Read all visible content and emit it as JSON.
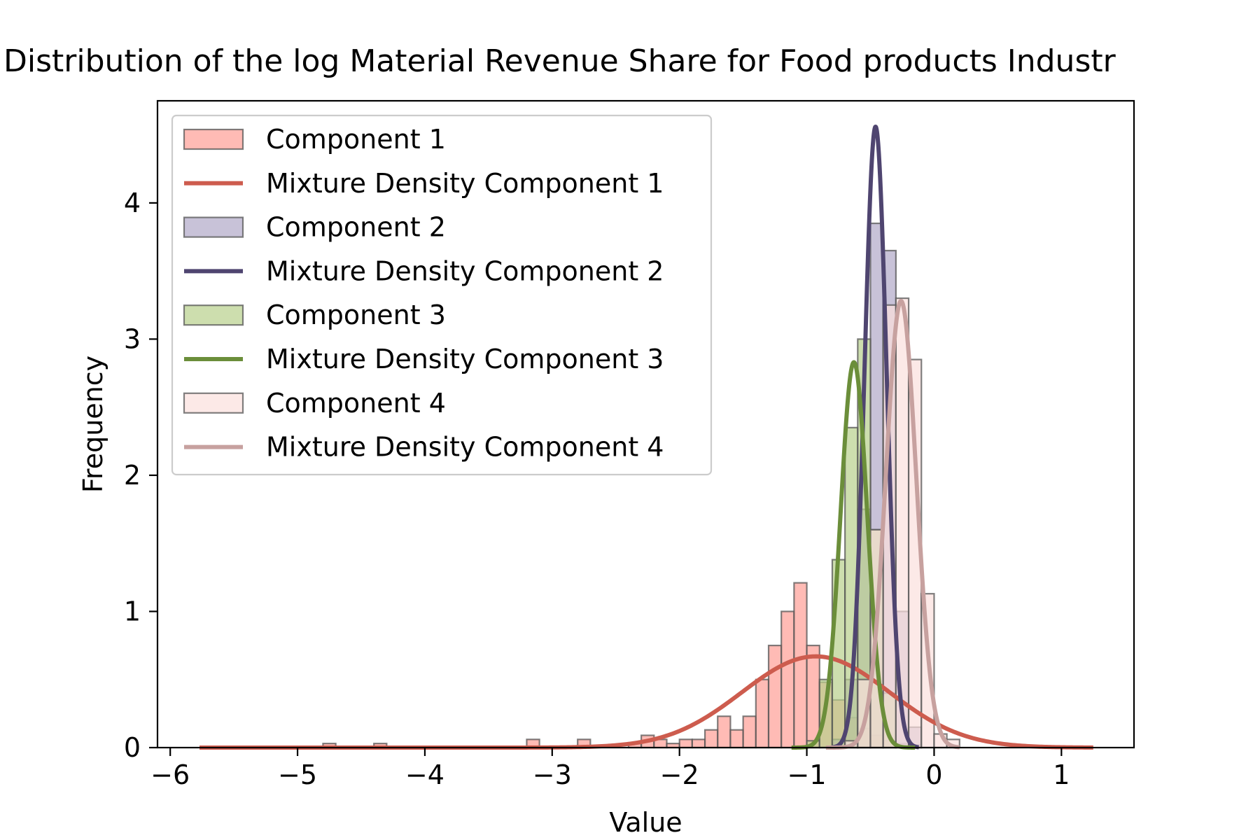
{
  "chart_data": {
    "type": "histogram",
    "title": "Distribution of the log Material Revenue Share for Food products Industr",
    "xlabel": "Value",
    "ylabel": "Frequency",
    "xlim": [
      -6.1,
      1.57
    ],
    "ylim": [
      0,
      4.75
    ],
    "xticks": [
      -6,
      -5,
      -4,
      -3,
      -2,
      -1,
      0,
      1
    ],
    "xtick_labels": [
      "−6",
      "−5",
      "−4",
      "−3",
      "−2",
      "−1",
      "0",
      "1"
    ],
    "yticks": [
      0,
      1,
      2,
      3,
      4
    ],
    "ytick_labels": [
      "0",
      "1",
      "2",
      "3",
      "4"
    ],
    "grid": false,
    "legend_position": "upper-left",
    "bin_width": 0.1,
    "series": [
      {
        "name": "Component 1",
        "kind": "bars",
        "color": "#ff9e96",
        "bins": [
          {
            "x": -4.75,
            "h": 0.03
          },
          {
            "x": -4.35,
            "h": 0.03
          },
          {
            "x": -3.15,
            "h": 0.06
          },
          {
            "x": -2.75,
            "h": 0.06
          },
          {
            "x": -2.35,
            "h": 0.03
          },
          {
            "x": -2.25,
            "h": 0.09
          },
          {
            "x": -2.15,
            "h": 0.06
          },
          {
            "x": -2.05,
            "h": 0.03
          },
          {
            "x": -1.95,
            "h": 0.06
          },
          {
            "x": -1.85,
            "h": 0.06
          },
          {
            "x": -1.75,
            "h": 0.13
          },
          {
            "x": -1.65,
            "h": 0.23
          },
          {
            "x": -1.55,
            "h": 0.13
          },
          {
            "x": -1.45,
            "h": 0.23
          },
          {
            "x": -1.35,
            "h": 0.5
          },
          {
            "x": -1.25,
            "h": 0.75
          },
          {
            "x": -1.15,
            "h": 1.0
          },
          {
            "x": -1.05,
            "h": 1.21
          },
          {
            "x": -0.95,
            "h": 0.75
          },
          {
            "x": -0.85,
            "h": 0.48
          },
          {
            "x": -0.75,
            "h": 0.35
          },
          {
            "x": -0.65,
            "h": 0.22
          },
          {
            "x": -0.55,
            "h": 0.14
          },
          {
            "x": -0.45,
            "h": 0.09
          },
          {
            "x": -0.35,
            "h": 0.05
          },
          {
            "x": -0.25,
            "h": 0.03
          },
          {
            "x": -0.15,
            "h": 0.02
          }
        ]
      },
      {
        "name": "Mixture Density Component 1",
        "kind": "normal_curve",
        "color": "#cd5c4e",
        "mean": -0.93,
        "sd": 0.58,
        "peak": 0.67,
        "x_range": [
          -5.77,
          1.25
        ]
      },
      {
        "name": "Component 2",
        "kind": "bars",
        "color": "#b0a8c8",
        "bins": [
          {
            "x": -0.75,
            "h": 0.06
          },
          {
            "x": -0.65,
            "h": 0.5
          },
          {
            "x": -0.55,
            "h": 1.75
          },
          {
            "x": -0.45,
            "h": 3.85
          },
          {
            "x": -0.35,
            "h": 3.65
          },
          {
            "x": -0.25,
            "h": 1.0
          },
          {
            "x": -0.15,
            "h": 0.15
          }
        ]
      },
      {
        "name": "Mixture Density Component 2",
        "kind": "normal_curve",
        "color": "#4f4570",
        "mean": -0.46,
        "sd": 0.087,
        "peak": 4.56,
        "x_range": [
          -0.8,
          -0.12
        ]
      },
      {
        "name": "Component 3",
        "kind": "bars",
        "color": "#b8d08c",
        "bins": [
          {
            "x": -0.95,
            "h": 0.05
          },
          {
            "x": -0.85,
            "h": 0.5
          },
          {
            "x": -0.75,
            "h": 1.38
          },
          {
            "x": -0.65,
            "h": 2.35
          },
          {
            "x": -0.55,
            "h": 3.0
          },
          {
            "x": -0.45,
            "h": 1.6
          },
          {
            "x": -0.35,
            "h": 0.4
          }
        ]
      },
      {
        "name": "Mixture Density Component 3",
        "kind": "normal_curve",
        "color": "#6b8e3a",
        "mean": -0.63,
        "sd": 0.105,
        "peak": 2.83,
        "x_range": [
          -1.12,
          -0.15
        ]
      },
      {
        "name": "Component 4",
        "kind": "bars",
        "color": "#fbe0dd",
        "bins": [
          {
            "x": -0.65,
            "h": 0.05
          },
          {
            "x": -0.55,
            "h": 0.5
          },
          {
            "x": -0.45,
            "h": 1.6
          },
          {
            "x": -0.35,
            "h": 3.25
          },
          {
            "x": -0.25,
            "h": 3.3
          },
          {
            "x": -0.15,
            "h": 2.85
          },
          {
            "x": -0.05,
            "h": 1.13
          },
          {
            "x": 0.05,
            "h": 0.1
          },
          {
            "x": 0.15,
            "h": 0.06
          }
        ]
      },
      {
        "name": "Mixture Density Component 4",
        "kind": "normal_curve",
        "color": "#c7a19f",
        "mean": -0.26,
        "sd": 0.12,
        "peak": 3.28,
        "x_range": [
          -0.85,
          0.2
        ]
      }
    ]
  }
}
